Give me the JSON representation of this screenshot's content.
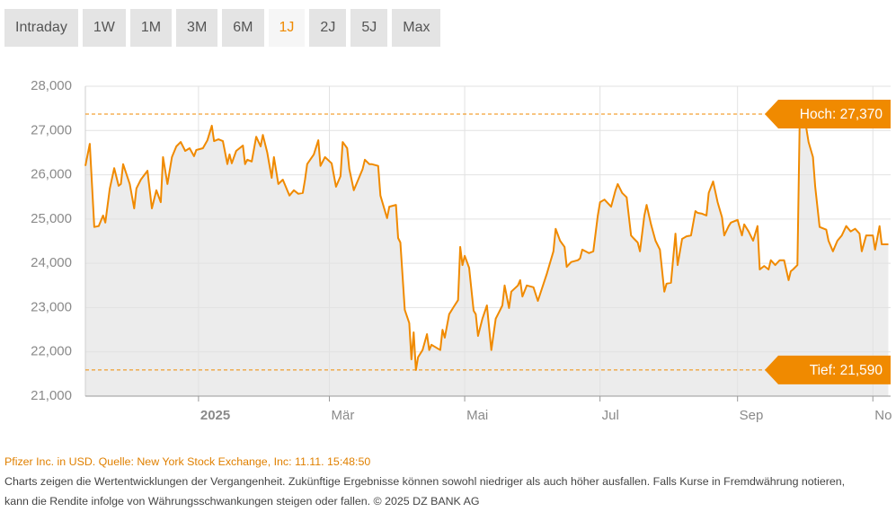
{
  "tabs": [
    {
      "label": "Intraday",
      "active": false
    },
    {
      "label": "1W",
      "active": false
    },
    {
      "label": "1M",
      "active": false
    },
    {
      "label": "3M",
      "active": false
    },
    {
      "label": "6M",
      "active": false
    },
    {
      "label": "1J",
      "active": true
    },
    {
      "label": "2J",
      "active": false
    },
    {
      "label": "5J",
      "active": false
    },
    {
      "label": "Max",
      "active": false
    }
  ],
  "chart_data": {
    "type": "line",
    "color": "#f08a00",
    "fill": "#ececec",
    "grid": true,
    "xlim": [
      -51,
      312
    ],
    "xticks": [
      {
        "value": 0,
        "label": "2025"
      },
      {
        "value": 59,
        "label": "Mär"
      },
      {
        "value": 120,
        "label": "Mai"
      },
      {
        "value": 181,
        "label": "Jul"
      },
      {
        "value": 243,
        "label": "Sep"
      },
      {
        "value": 304,
        "label": "Nov"
      }
    ],
    "ylim": [
      21000,
      28000
    ],
    "yticks": [
      {
        "value": 21000,
        "label": "21,000"
      },
      {
        "value": 22000,
        "label": "22,000"
      },
      {
        "value": 23000,
        "label": "23,000"
      },
      {
        "value": 24000,
        "label": "24,000"
      },
      {
        "value": 25000,
        "label": "25,000"
      },
      {
        "value": 26000,
        "label": "26,000"
      },
      {
        "value": 27000,
        "label": "27,000"
      },
      {
        "value": 28000,
        "label": "28,000"
      }
    ],
    "x": [
      -51,
      -49,
      -47,
      -45,
      -43,
      -42,
      -40,
      -38,
      -36,
      -35,
      -34,
      -31,
      -29,
      -28,
      -26,
      -23,
      -21,
      -19,
      -17,
      -16,
      -14,
      -12,
      -10,
      -8,
      -6,
      -4,
      -2,
      -1,
      2,
      4,
      6,
      7,
      9,
      11,
      13,
      14,
      15,
      17,
      20,
      21,
      22,
      24,
      26,
      28,
      29,
      31,
      33,
      34,
      36,
      38,
      40,
      41,
      43,
      45,
      47,
      48,
      49,
      52,
      54,
      55,
      57,
      60,
      62,
      64,
      65,
      67,
      68,
      70,
      72,
      74,
      75,
      77,
      78,
      81,
      82,
      85,
      86,
      89,
      90,
      91,
      93,
      95,
      96,
      97,
      98,
      99,
      101,
      103,
      104,
      105,
      109,
      110,
      111,
      113,
      115,
      117,
      118,
      119,
      120,
      122,
      124,
      125,
      126,
      128,
      130,
      132,
      134,
      136,
      137,
      138,
      140,
      141,
      144,
      145,
      146,
      148,
      151,
      153,
      155,
      157,
      160,
      161,
      163,
      165,
      166,
      168,
      171,
      172,
      173,
      176,
      178,
      180,
      181,
      183,
      186,
      188,
      189,
      191,
      193,
      195,
      196,
      198,
      199,
      201,
      202,
      204,
      206,
      208,
      210,
      211,
      213,
      215,
      216,
      218,
      220,
      222,
      224,
      225,
      227,
      229,
      230,
      232,
      234,
      236,
      237,
      239,
      240,
      243,
      245,
      246,
      248,
      250,
      252,
      253,
      255,
      257,
      258,
      260,
      262,
      264,
      266,
      267,
      268,
      270,
      271,
      273,
      275,
      277,
      278,
      280,
      283,
      284,
      286,
      288,
      290,
      292,
      294,
      296,
      298,
      299,
      301,
      304,
      305,
      307,
      308,
      311
    ],
    "values": [
      26200,
      26700,
      24820,
      24840,
      25080,
      24920,
      25690,
      26150,
      25750,
      25790,
      26240,
      25790,
      25240,
      25690,
      25890,
      26090,
      25240,
      25650,
      25380,
      26400,
      25790,
      26400,
      26640,
      26740,
      26540,
      26600,
      26420,
      26560,
      26600,
      26780,
      27110,
      26760,
      26800,
      26760,
      26240,
      26460,
      26260,
      26540,
      26660,
      26240,
      26340,
      26300,
      26860,
      26640,
      26900,
      26500,
      25930,
      26400,
      25790,
      25890,
      25650,
      25530,
      25650,
      25570,
      25590,
      25890,
      26240,
      26460,
      26780,
      26200,
      26400,
      26260,
      25730,
      25970,
      26740,
      26600,
      26130,
      25650,
      25890,
      26130,
      26340,
      26240,
      26240,
      26200,
      25530,
      25020,
      25280,
      25320,
      24570,
      24470,
      22950,
      22650,
      21830,
      22440,
      21590,
      21880,
      22040,
      22400,
      22040,
      22160,
      22040,
      22500,
      22320,
      22850,
      23010,
      23170,
      24370,
      23960,
      24170,
      23900,
      22930,
      22850,
      22360,
      22750,
      23050,
      22040,
      22750,
      22950,
      23050,
      23500,
      22990,
      23360,
      23500,
      23620,
      23250,
      23500,
      23460,
      23150,
      23460,
      23760,
      24270,
      24780,
      24510,
      24370,
      23920,
      24030,
      24070,
      24110,
      24310,
      24230,
      24270,
      25080,
      25380,
      25440,
      25280,
      25650,
      25790,
      25590,
      25490,
      24630,
      24570,
      24470,
      24270,
      25080,
      25320,
      24880,
      24510,
      24310,
      23360,
      23540,
      23560,
      24670,
      23960,
      24550,
      24610,
      24630,
      25180,
      25140,
      25120,
      25080,
      25590,
      25850,
      25380,
      25040,
      24630,
      24840,
      24920,
      24980,
      24630,
      24880,
      24720,
      24510,
      24840,
      23860,
      23940,
      23860,
      24070,
      23960,
      24070,
      24070,
      23620,
      23820,
      23860,
      23960,
      27150,
      27370,
      26740,
      26400,
      25730,
      24820,
      24760,
      24510,
      24270,
      24510,
      24630,
      24840,
      24720,
      24780,
      24670,
      24270,
      24630,
      24630,
      24310,
      24840,
      24430,
      24430
    ],
    "annotations": [
      {
        "value": 27370,
        "label": "Hoch: 27,370"
      },
      {
        "value": 21590,
        "label": "Tief: 21,590"
      }
    ]
  },
  "footer": {
    "source": "Pfizer Inc. in USD. Quelle: New York Stock Exchange, Inc: 11.11. 15:48:50",
    "disclaimer": [
      "Charts zeigen die Wertentwicklungen der Vergangenheit. Zukünftige Ergebnisse können sowohl niedriger als auch höher ausfallen. Falls Kurse in Fremdwährung notieren,",
      "kann die Rendite infolge von Währungsschwankungen steigen oder fallen. © 2025 DZ BANK AG"
    ]
  }
}
